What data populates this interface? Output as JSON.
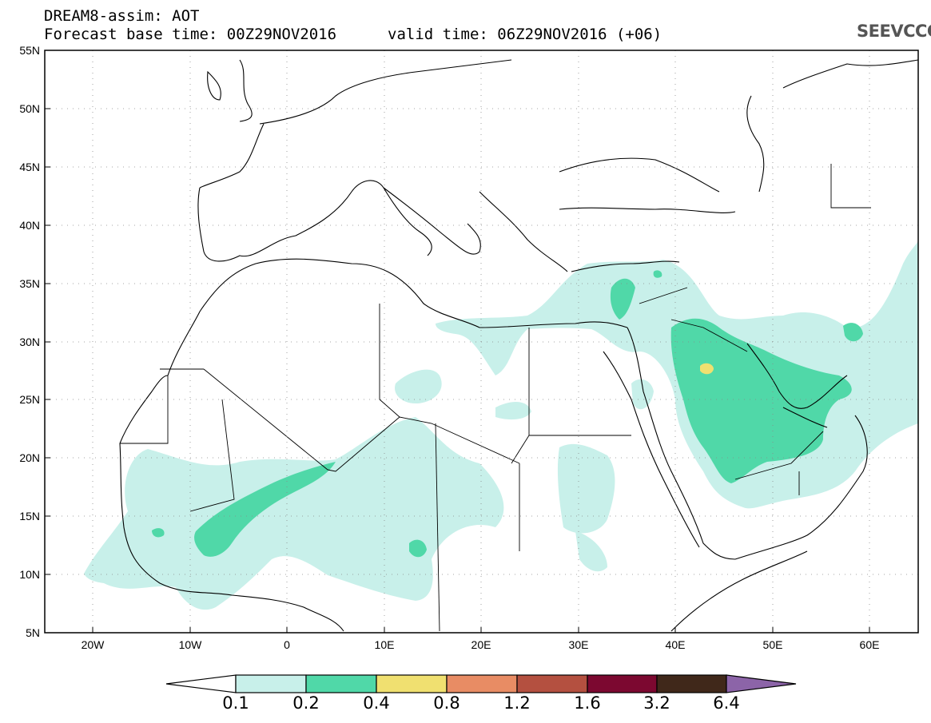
{
  "header": {
    "title_line1": "DREAM8-assim: AOT",
    "title_line2": "Forecast base time: 00Z29NOV2016",
    "valid_time": "valid time: 06Z29NOV2016 (+06)"
  },
  "logo": {
    "text": "SEEVCCC",
    "icon": "cloud-icon"
  },
  "map": {
    "lat_labels": [
      "55N",
      "50N",
      "45N",
      "40N",
      "35N",
      "30N",
      "25N",
      "20N",
      "15N",
      "10N",
      "5N"
    ],
    "lon_labels": [
      "20W",
      "10W",
      "0",
      "10E",
      "20E",
      "30E",
      "40E",
      "50E",
      "60E"
    ],
    "lat_range": [
      5,
      55
    ],
    "lon_range": [
      -25,
      65
    ],
    "grid": "dotted"
  },
  "legend": {
    "values": [
      "0.1",
      "0.2",
      "0.4",
      "0.8",
      "1.2",
      "1.6",
      "3.2",
      "6.4"
    ],
    "colors": [
      "#ffffff",
      "#c8f0ea",
      "#50d8a8",
      "#f0e070",
      "#e88c64",
      "#b45040",
      "#7c0830",
      "#40281a",
      "#8c64a8"
    ]
  }
}
